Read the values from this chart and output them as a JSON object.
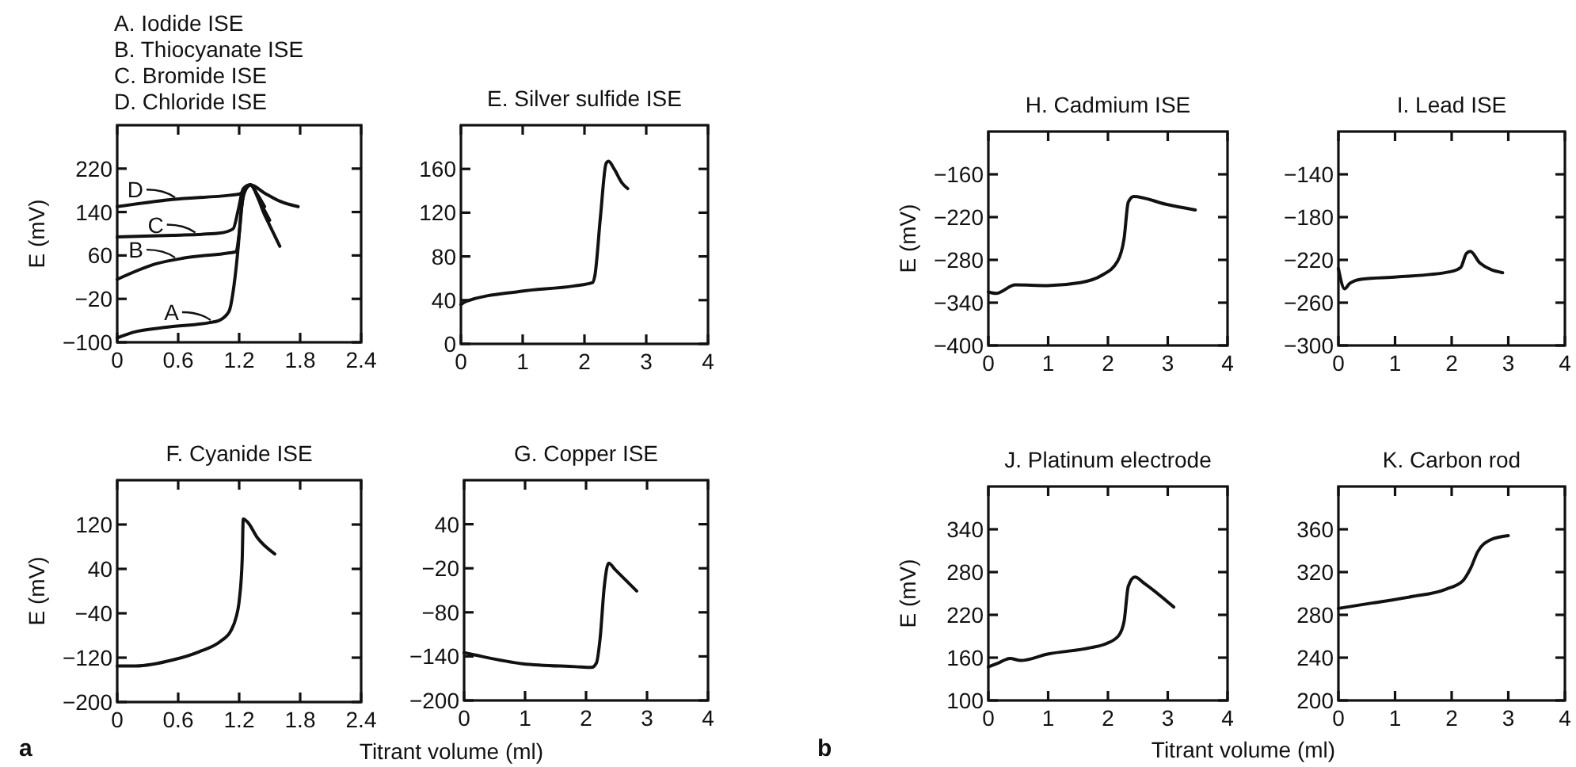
{
  "chart_data": [
    {
      "type": "line",
      "legend": "left",
      "annotations": [
        "A. Iodide ISE",
        "B. Thiocyanate ISE",
        "C. Bromide ISE",
        "D. Chloride ISE"
      ],
      "ylabel": "E (mV)",
      "xlim": [
        0,
        2.4
      ],
      "ylim": [
        -100,
        300
      ],
      "xticks": [
        0,
        0.6,
        1.2,
        1.8,
        2.4
      ],
      "yticks": [
        -100,
        -20,
        60,
        140,
        220
      ],
      "series": [
        {
          "name": "A",
          "color": "#111111",
          "x": [
            0,
            0.15,
            0.5,
            0.9,
            1.0,
            1.1,
            1.15,
            1.19,
            1.22,
            1.26,
            1.31,
            1.38,
            1.45
          ],
          "values": [
            -92,
            -82,
            -72,
            -64,
            -60,
            -43,
            6,
            75,
            143,
            180,
            190,
            172,
            150
          ]
        },
        {
          "name": "B",
          "color": "#111111",
          "x": [
            0,
            0.39,
            0.65,
            1.11,
            1.17,
            1.2,
            1.24,
            1.31,
            1.4,
            1.5
          ],
          "values": [
            16,
            45,
            55,
            65,
            67,
            100,
            170,
            190,
            160,
            125
          ]
        },
        {
          "name": "C",
          "color": "#111111",
          "x": [
            0,
            0.54,
            1.0,
            1.14,
            1.19,
            1.24,
            1.31,
            1.45,
            1.6
          ],
          "values": [
            94,
            97,
            101,
            109,
            143,
            183,
            190,
            135,
            77
          ]
        },
        {
          "name": "D",
          "color": "#111111",
          "x": [
            0,
            0.54,
            1.11,
            1.2,
            1.26,
            1.31,
            1.45,
            1.6,
            1.78
          ],
          "values": [
            150,
            163,
            171,
            173,
            182,
            190,
            175,
            160,
            150
          ]
        }
      ]
    },
    {
      "type": "line",
      "title": "E. Silver sulfide ISE",
      "xlim": [
        0,
        4
      ],
      "ylim": [
        0,
        200
      ],
      "xticks": [
        0,
        1,
        2,
        3,
        4
      ],
      "yticks": [
        0,
        40,
        80,
        120,
        160
      ],
      "series": [
        {
          "color": "#111111",
          "x": [
            0,
            0.09,
            0.96,
            1.83,
            2.13,
            2.17,
            2.26,
            2.35,
            2.39,
            2.48,
            2.61,
            2.7
          ],
          "values": [
            36,
            39,
            48,
            53,
            56,
            63,
            117,
            165,
            167,
            160,
            147,
            142
          ]
        }
      ]
    },
    {
      "type": "line",
      "title": "F. Cyanide ISE",
      "ylabel": "E (mV)",
      "xlabel": "Titrant volume (ml)",
      "annotations": [
        "a"
      ],
      "xlim": [
        0,
        2.4
      ],
      "ylim": [
        -200,
        200
      ],
      "xticks": [
        0,
        0.6,
        1.2,
        1.8,
        2.4
      ],
      "yticks": [
        -200,
        -120,
        -40,
        40,
        120
      ],
      "series": [
        {
          "color": "#111111",
          "x": [
            0,
            0.18,
            0.55,
            0.81,
            1.02,
            1.12,
            1.17,
            1.2,
            1.23,
            1.24,
            1.28,
            1.38,
            1.55
          ],
          "values": [
            -135,
            -135,
            -124,
            -109,
            -90,
            -71,
            -47,
            -18,
            58,
            130,
            125,
            96,
            67
          ]
        }
      ]
    },
    {
      "type": "line",
      "title": "G. Copper ISE",
      "xlim": [
        0,
        4
      ],
      "ylim": [
        -200,
        100
      ],
      "xticks": [
        0,
        1,
        2,
        3,
        4
      ],
      "yticks": [
        -200,
        -140,
        -80,
        -20,
        40
      ],
      "series": [
        {
          "color": "#111111",
          "x": [
            0,
            0.17,
            0.96,
            1.83,
            2.09,
            2.17,
            2.23,
            2.3,
            2.37,
            2.48,
            2.83
          ],
          "values": [
            -135,
            -138,
            -150,
            -154,
            -155,
            -149,
            -116,
            -44,
            -13,
            -22,
            -51
          ]
        }
      ]
    },
    {
      "type": "line",
      "title": "H. Cadmium ISE",
      "ylabel": "E (mV)",
      "xlim": [
        0,
        4
      ],
      "ylim": [
        -400,
        -100
      ],
      "xticks": [
        0,
        1,
        2,
        3,
        4
      ],
      "yticks": [
        -400,
        -340,
        -280,
        -220,
        -160
      ],
      "series": [
        {
          "color": "#111111",
          "x": [
            0,
            0.13,
            0.45,
            0.99,
            1.53,
            1.89,
            2.16,
            2.27,
            2.34,
            2.43,
            2.97,
            3.46
          ],
          "values": [
            -325,
            -327,
            -315,
            -316,
            -312,
            -302,
            -282,
            -250,
            -199,
            -191,
            -202,
            -210
          ]
        }
      ]
    },
    {
      "type": "line",
      "title": "I. Lead ISE",
      "xlim": [
        0,
        4
      ],
      "ylim": [
        -300,
        -100
      ],
      "xticks": [
        0,
        1,
        2,
        3,
        4
      ],
      "yticks": [
        -300,
        -260,
        -220,
        -180,
        -140
      ],
      "series": [
        {
          "color": "#111111",
          "x": [
            0,
            0.11,
            0.2,
            0.42,
            1.03,
            1.98,
            2.16,
            2.26,
            2.33,
            2.5,
            2.9
          ],
          "values": [
            -228,
            -247,
            -242,
            -238,
            -236,
            -231,
            -227,
            -214,
            -212,
            -223,
            -232
          ]
        }
      ]
    },
    {
      "type": "line",
      "title": "J. Platinum electrode",
      "ylabel": "E (mV)",
      "xlabel": "Titrant volume (ml)",
      "annotations": [
        "b"
      ],
      "xlim": [
        0,
        4
      ],
      "ylim": [
        100,
        400
      ],
      "xticks": [
        0,
        1,
        2,
        3,
        4
      ],
      "yticks": [
        100,
        160,
        220,
        280,
        340
      ],
      "series": [
        {
          "color": "#111111",
          "x": [
            0,
            0.18,
            0.36,
            0.54,
            0.99,
            1.71,
            1.98,
            2.18,
            2.27,
            2.34,
            2.45,
            2.61,
            3.1
          ],
          "values": [
            147,
            153,
            159,
            156,
            165,
            174,
            180,
            191,
            211,
            260,
            273,
            264,
            231
          ]
        }
      ]
    },
    {
      "type": "line",
      "title": "K. Carbon rod",
      "xlim": [
        0,
        4
      ],
      "ylim": [
        200,
        400
      ],
      "xticks": [
        0,
        1,
        2,
        3,
        4
      ],
      "yticks": [
        200,
        240,
        280,
        320,
        360
      ],
      "series": [
        {
          "color": "#111111",
          "x": [
            0,
            0.59,
            1.29,
            1.9,
            2.2,
            2.33,
            2.46,
            2.68,
            3.0
          ],
          "values": [
            286,
            291,
            297,
            304,
            312,
            323,
            339,
            350,
            354
          ]
        }
      ]
    }
  ]
}
